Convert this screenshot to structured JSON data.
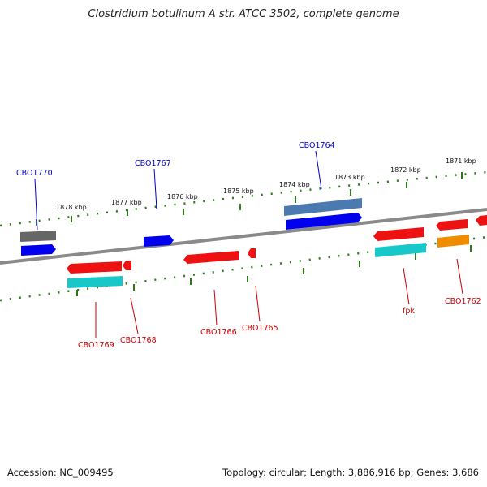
{
  "title": "Clostridium botulinum A str. ATCC 3502, complete genome",
  "footer": {
    "accession": "Accession: NC_009495",
    "summary": "Topology: circular; Length: 3,886,916 bp; Genes: 3,686"
  },
  "scale_labels": [
    "1878 kbp",
    "1877 kbp",
    "1876 kbp",
    "1875 kbp",
    "1874 kbp",
    "1873 kbp",
    "1872 kbp",
    "1871 kbp"
  ],
  "gene_labels": {
    "top": [
      "CBO1770",
      "CBO1767",
      "CBO1764"
    ],
    "bottom": [
      "CBO1769",
      "CBO1768",
      "CBO1766",
      "CBO1765",
      "fpk",
      "CBO1762"
    ]
  },
  "colors": {
    "forward_label": "#0000cc",
    "reverse_label": "#cc0000",
    "backbone": "#8a8a8a",
    "tick": "#2a7a1a",
    "gene_blue": "#0000ee",
    "gene_red": "#ee1111",
    "gene_cyan": "#18c8c8",
    "gene_gray": "#666666",
    "gene_steel": "#4a7ab0",
    "gene_orange": "#f08c00"
  }
}
